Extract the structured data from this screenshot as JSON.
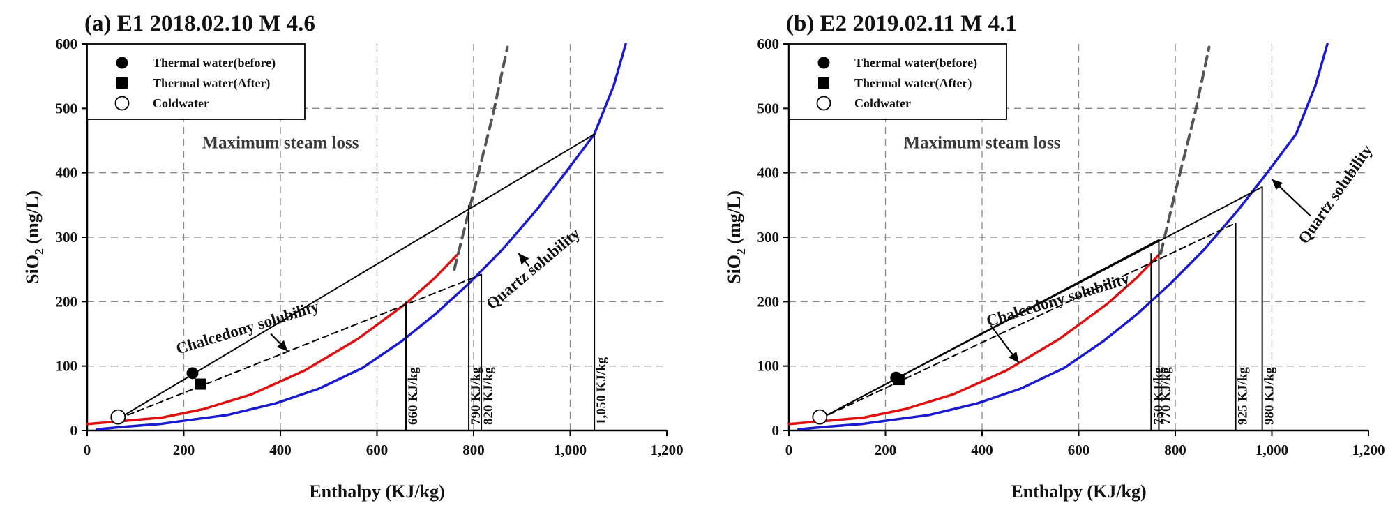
{
  "chart_data": [
    {
      "type": "line",
      "title": "(a) E1 2018.02.10 M 4.6",
      "xlabel": "Enthalpy (KJ/kg)",
      "ylabel_main": "SiO",
      "ylabel_sub": "2",
      "ylabel_unit": " (mg/L)",
      "xlim": [
        0,
        1200
      ],
      "ylim": [
        0,
        600
      ],
      "x_ticks": [
        0,
        200,
        400,
        600,
        800,
        1000,
        1200
      ],
      "x_tick_labels": [
        "0",
        "200",
        "400",
        "600",
        "800",
        "1,000",
        "1,200"
      ],
      "y_ticks": [
        0,
        100,
        200,
        300,
        400,
        500,
        600
      ],
      "y_tick_labels": [
        "0",
        "100",
        "200",
        "300",
        "400",
        "500",
        "600"
      ],
      "grid": true,
      "legend": {
        "placement": "top-left",
        "entries": [
          {
            "label": "Thermal water(before)",
            "marker": "filled-circle"
          },
          {
            "label": "Thermal water(After)",
            "marker": "filled-square"
          },
          {
            "label": "Coldwater",
            "marker": "open-circle"
          }
        ]
      },
      "colors": {
        "quartz": "#1a1ad0",
        "chalcedony": "#e01010",
        "steam": "#555555",
        "lines": "#000000"
      },
      "series": [
        {
          "name": "Quartz solubility",
          "style": "blue-solid",
          "x": [
            20,
            80,
            150,
            210,
            290,
            390,
            480,
            570,
            650,
            720,
            790,
            860,
            930,
            990,
            1050,
            1090,
            1115
          ],
          "y": [
            2,
            6,
            10,
            16,
            24,
            42,
            65,
            97,
            138,
            180,
            228,
            281,
            342,
            400,
            460,
            535,
            600
          ]
        },
        {
          "name": "Chalcedony solubility",
          "style": "red-solid",
          "x": [
            0,
            80,
            155,
            240,
            340,
            450,
            560,
            660,
            720,
            765
          ],
          "y": [
            10,
            15,
            20,
            33,
            56,
            93,
            142,
            197,
            237,
            272
          ]
        },
        {
          "name": "Maximum steam loss",
          "style": "gray-dashed",
          "x": [
            760,
            800,
            840,
            870
          ],
          "y": [
            250,
            370,
            490,
            595
          ]
        },
        {
          "name": "mixing-line-before",
          "style": "black-solid",
          "x": [
            64,
            1050
          ],
          "y": [
            18,
            460
          ]
        },
        {
          "name": "mixing-line-after",
          "style": "black-dashed",
          "x": [
            64,
            816
          ],
          "y": [
            18,
            242
          ]
        }
      ],
      "points": [
        {
          "kind": "Thermal water(before)",
          "x": 218,
          "y": 89,
          "marker": "filled-circle"
        },
        {
          "kind": "Thermal water(After)",
          "x": 235,
          "y": 72,
          "marker": "filled-square"
        },
        {
          "kind": "Coldwater",
          "x": 64,
          "y": 21,
          "marker": "open-circle"
        }
      ],
      "verticals": [
        {
          "x": 660,
          "y": 200,
          "label": "660 KJ/kg"
        },
        {
          "x": 790,
          "y": 350,
          "label": "790 KJ/kg"
        },
        {
          "x": 816,
          "y": 242,
          "label": "820 KJ/kg"
        },
        {
          "x": 1050,
          "y": 460,
          "label": "1,050 KJ/kg"
        }
      ],
      "annotations": [
        {
          "text": "Maximum steam loss",
          "x": 400,
          "y": 438,
          "rotate": 0,
          "cls": "msl"
        },
        {
          "text": "Chalcedony solubility",
          "x": 335,
          "y": 152,
          "rotate": -17,
          "cls": "annot"
        },
        {
          "text": "Quartz solubility",
          "x": 930,
          "y": 245,
          "rotate": -40,
          "cls": "annot"
        }
      ],
      "arrows": [
        {
          "from": [
            415,
            123
          ],
          "to": [
            380,
            150
          ],
          "head": "start"
        },
        {
          "from": [
            893,
            275
          ],
          "to": [
            915,
            255
          ],
          "head": "start"
        }
      ]
    },
    {
      "type": "line",
      "title": "(b) E2 2019.02.11 M 4.1",
      "xlabel": "Enthalpy (KJ/kg)",
      "ylabel_main": "SiO",
      "ylabel_sub": "2",
      "ylabel_unit": " (mg/L)",
      "xlim": [
        0,
        1200
      ],
      "ylim": [
        0,
        600
      ],
      "x_ticks": [
        0,
        200,
        400,
        600,
        800,
        1000,
        1200
      ],
      "x_tick_labels": [
        "0",
        "200",
        "400",
        "600",
        "800",
        "1,000",
        "1,200"
      ],
      "y_ticks": [
        0,
        100,
        200,
        300,
        400,
        500,
        600
      ],
      "y_tick_labels": [
        "0",
        "100",
        "200",
        "300",
        "400",
        "500",
        "600"
      ],
      "grid": true,
      "legend": {
        "placement": "top-left",
        "entries": [
          {
            "label": "Thermal water(before)",
            "marker": "filled-circle"
          },
          {
            "label": "Thermal water(After)",
            "marker": "filled-square"
          },
          {
            "label": "Coldwater",
            "marker": "open-circle"
          }
        ]
      },
      "colors": {
        "quartz": "#1a1ad0",
        "chalcedony": "#e01010",
        "steam": "#555555",
        "lines": "#000000"
      },
      "series": [
        {
          "name": "Quartz solubility",
          "style": "blue-solid",
          "x": [
            20,
            80,
            150,
            210,
            290,
            390,
            480,
            570,
            650,
            720,
            790,
            860,
            930,
            990,
            1050,
            1090,
            1115
          ],
          "y": [
            2,
            6,
            10,
            16,
            24,
            42,
            65,
            97,
            138,
            180,
            228,
            281,
            342,
            400,
            460,
            535,
            600
          ]
        },
        {
          "name": "Chalcedony solubility",
          "style": "red-solid",
          "x": [
            0,
            80,
            155,
            240,
            340,
            450,
            560,
            660,
            720,
            765
          ],
          "y": [
            10,
            15,
            20,
            33,
            56,
            93,
            142,
            197,
            237,
            272
          ]
        },
        {
          "name": "Maximum steam loss",
          "style": "gray-dashed",
          "x": [
            770,
            800,
            840,
            870
          ],
          "y": [
            275,
            370,
            490,
            595
          ]
        },
        {
          "name": "mixing-line-before",
          "style": "black-solid",
          "x": [
            64,
            980
          ],
          "y": [
            18,
            378
          ]
        },
        {
          "name": "mixing-line-before-short",
          "style": "black-solid",
          "x": [
            64,
            766
          ],
          "y": [
            18,
            296
          ]
        },
        {
          "name": "mixing-line-after",
          "style": "black-dashed",
          "x": [
            64,
            925
          ],
          "y": [
            18,
            322
          ]
        }
      ],
      "points": [
        {
          "kind": "Thermal water(before)",
          "x": 222,
          "y": 82,
          "marker": "filled-circle"
        },
        {
          "kind": "Thermal water(After)",
          "x": 228,
          "y": 79,
          "marker": "filled-square"
        },
        {
          "kind": "Coldwater",
          "x": 64,
          "y": 21,
          "marker": "open-circle"
        }
      ],
      "verticals": [
        {
          "x": 750,
          "y": 275,
          "label": "750 KJ/kg"
        },
        {
          "x": 766,
          "y": 296,
          "label": "770 KJ/kg"
        },
        {
          "x": 925,
          "y": 322,
          "label": "925 KJ/kg"
        },
        {
          "x": 980,
          "y": 378,
          "label": "980 KJ/kg"
        }
      ],
      "annotations": [
        {
          "text": "Maximum steam loss",
          "x": 400,
          "y": 438,
          "rotate": 0,
          "cls": "msl"
        },
        {
          "text": "Chalcedony solubility",
          "x": 560,
          "y": 195,
          "rotate": -17,
          "cls": "annot"
        },
        {
          "text": "Quartz solubility",
          "x": 1140,
          "y": 362,
          "rotate": -55,
          "cls": "annot"
        }
      ],
      "arrows": [
        {
          "from": [
            1000,
            390
          ],
          "to": [
            1080,
            333
          ],
          "head": "start"
        },
        {
          "from": [
            418,
            163
          ],
          "to": [
            476,
            105
          ],
          "head": "end"
        }
      ]
    }
  ]
}
